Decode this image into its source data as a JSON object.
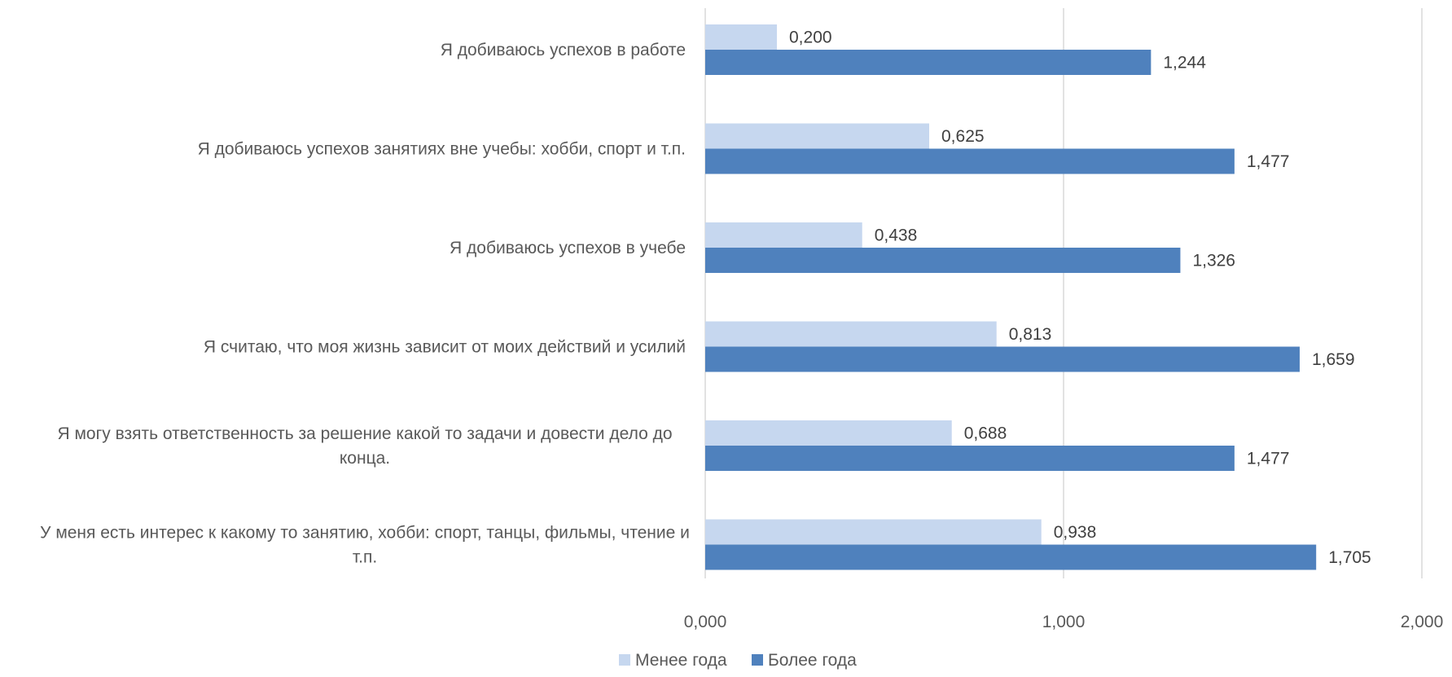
{
  "chart_data": {
    "type": "bar",
    "orientation": "horizontal",
    "title": "",
    "xlabel": "",
    "ylabel": "",
    "categories": [
      "Я добиваюсь успехов в работе",
      "Я добиваюсь успехов занятиях вне учебы: хобби, спорт и т.п.",
      "Я добиваюсь успехов в учебе",
      "Я считаю, что моя жизнь зависит от моих действий и усилий",
      "Я могу взять ответственность за решение какой то задачи и довести дело до конца.",
      "У меня есть интерес к какому то занятию, хобби: спорт, танцы, фильмы, чтение и т.п."
    ],
    "category_lines": [
      [
        "Я добиваюсь успехов в работе"
      ],
      [
        "Я добиваюсь успехов занятиях вне учебы: хобби, спорт и т.п."
      ],
      [
        "Я добиваюсь успехов в учебе"
      ],
      [
        "Я считаю, что моя жизнь зависит от моих действий и усилий"
      ],
      [
        "Я могу взять ответственность за решение какой то задачи и довести дело до",
        "конца."
      ],
      [
        "У меня есть интерес к какому то занятию, хобби: спорт, танцы, фильмы, чтение и",
        "т.п."
      ]
    ],
    "series": [
      {
        "name": "Менее года",
        "color": "#c6d7ef",
        "values": [
          0.2,
          0.625,
          0.438,
          0.813,
          0.688,
          0.938
        ],
        "labels": [
          "0,200",
          "0,625",
          "0,438",
          "0,813",
          "0,688",
          "0,938"
        ]
      },
      {
        "name": "Более года",
        "color": "#4f81bd",
        "values": [
          1.244,
          1.477,
          1.326,
          1.659,
          1.477,
          1.705
        ],
        "labels": [
          "1,244",
          "1,477",
          "1,326",
          "1,659",
          "1,477",
          "1,705"
        ]
      }
    ],
    "xlim": [
      0,
      2
    ],
    "ticks": [
      0,
      1,
      2
    ],
    "tick_labels": [
      "0,000",
      "1,000",
      "2,000"
    ],
    "grid": true,
    "legend_position": "bottom"
  }
}
